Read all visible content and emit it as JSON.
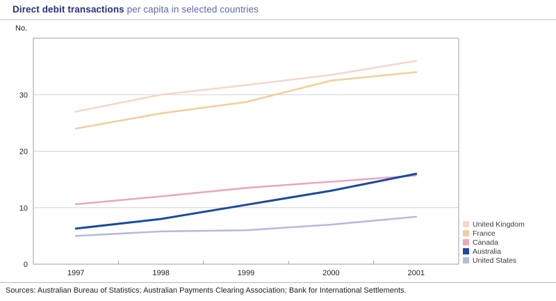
{
  "title": {
    "bold": "Direct debit transactions",
    "rest": " per capita in selected countries"
  },
  "source_note": "Sources: Australian Bureau of Statistics; Australian Payments Clearing Association; Bank for International Settlements.",
  "chart_data": {
    "type": "line",
    "title": "Direct debit transactions per capita in selected countries",
    "ylabel": "No.",
    "xlabel": "",
    "ylim": [
      0,
      40
    ],
    "yticks": [
      0,
      10,
      20,
      30
    ],
    "grid": true,
    "legend_position": "right",
    "x": [
      "1997",
      "1998",
      "1999",
      "2000",
      "2001"
    ],
    "series": [
      {
        "name": "United Kingdom",
        "color": "#f3d8ca",
        "values": [
          27,
          30,
          31.7,
          33.5,
          36
        ]
      },
      {
        "name": "France",
        "color": "#f2cf9d",
        "values": [
          24,
          26.7,
          28.7,
          32.5,
          34
        ]
      },
      {
        "name": "Canada",
        "color": "#e6a9bd",
        "values": [
          10.6,
          12,
          13.5,
          14.6,
          15.7
        ]
      },
      {
        "name": "Australia",
        "color": "#1a4a9d",
        "values": [
          6.3,
          8,
          10.5,
          13,
          16
        ]
      },
      {
        "name": "United States",
        "color": "#b5bbdd",
        "values": [
          5,
          5.8,
          6,
          7,
          8.4
        ]
      }
    ],
    "frame_color": "#9e9e9e",
    "gridline_color": "#d0d0d0",
    "tick_label_color": "#1e1e1e"
  }
}
